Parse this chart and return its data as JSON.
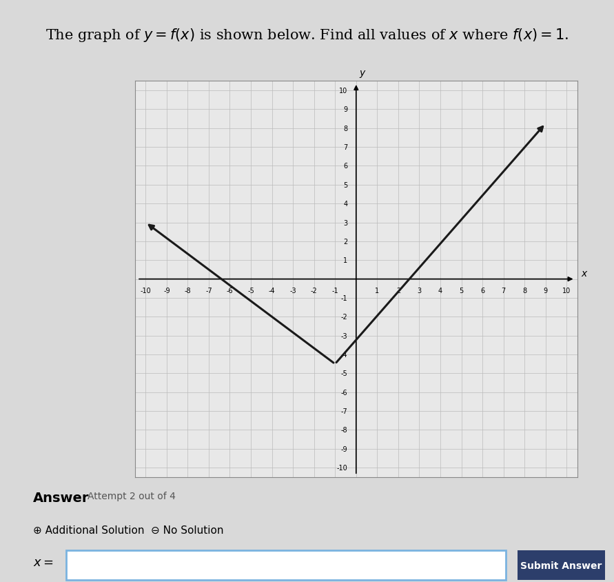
{
  "title_parts": [
    "The graph of ",
    "y",
    " = ",
    "f",
    "(",
    "x",
    ")",
    " is shown below. Find all values of ",
    "x",
    " where ",
    "f",
    "(",
    "x",
    ")",
    " = 1."
  ],
  "bg_color": "#d9d9d9",
  "plot_bg_color": "#e8e8e8",
  "grid_color": "#bbbbbb",
  "line_color": "#1a1a1a",
  "line_width": 2.2,
  "xlim": [
    -10.5,
    10.5
  ],
  "ylim": [
    -10.5,
    10.5
  ],
  "xticks": [
    -10,
    -9,
    -8,
    -7,
    -6,
    -5,
    -4,
    -3,
    -2,
    -1,
    1,
    2,
    3,
    4,
    5,
    6,
    7,
    8,
    9,
    10
  ],
  "yticks": [
    -10,
    -9,
    -8,
    -7,
    -6,
    -5,
    -4,
    -3,
    -2,
    -1,
    1,
    2,
    3,
    4,
    5,
    6,
    7,
    8,
    9,
    10
  ],
  "vertex_x": -1,
  "vertex_y": -4.5,
  "left_end_x": -10,
  "left_end_y": 3.0,
  "right_end_x": 9,
  "right_end_y": 8.25,
  "answer_label": "Answer",
  "attempt_text": "Attempt 2 out of 4",
  "additional_solution_text": "Additional Solution",
  "no_solution_text": "No Solution",
  "x_label": "x =",
  "submit_text": "Submit Answer",
  "submit_bg": "#2c3e6b",
  "submit_text_color": "#ffffff",
  "input_border_color": "#7ab3e0",
  "input_bg": "#ffffff"
}
